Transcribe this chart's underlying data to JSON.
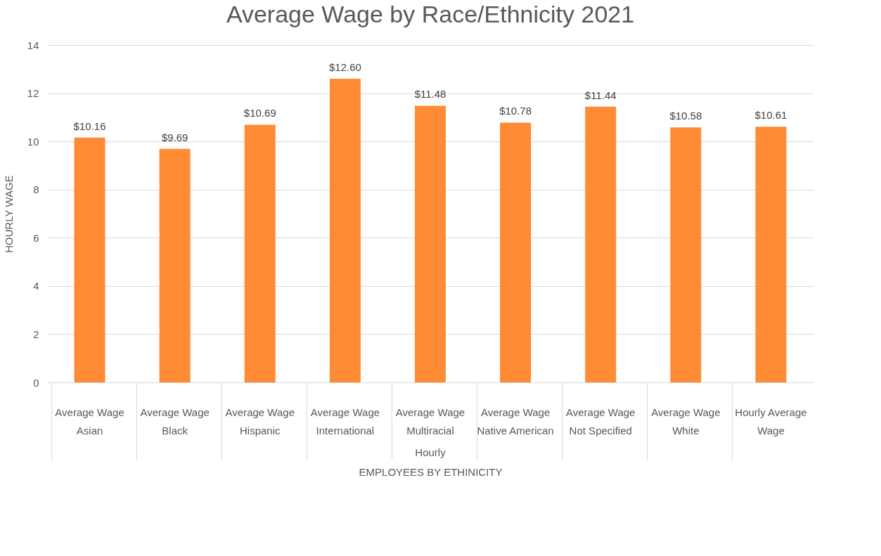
{
  "chart_data": {
    "type": "bar",
    "title": "Average Wage by Race/Ethnicity 2021",
    "categories": [
      "Average Wage\nAsian",
      "Average Wage\nBlack",
      "Average Wage\nHispanic",
      "Average Wage\nInternational",
      "Average Wage\nMultiracial",
      "Average Wage\nNative American",
      "Average Wage\nNot Specified",
      "Average Wage\nWhite",
      "Hourly Average\nWage"
    ],
    "values": [
      10.16,
      9.69,
      10.69,
      12.6,
      11.48,
      10.78,
      11.44,
      10.58,
      10.61
    ],
    "value_labels": [
      "$10.16",
      "$9.69",
      "$10.69",
      "$12.60",
      "$11.48",
      "$10.78",
      "$11.44",
      "$10.58",
      "$10.61"
    ],
    "color": "#ff8c35",
    "ylim": [
      0,
      14
    ],
    "yticks": [
      0,
      2,
      4,
      6,
      8,
      10,
      12,
      14
    ],
    "grid": "y",
    "ylabel": "HOURLY WAGE",
    "xlabel": "EMPLOYEES BY ETHINICITY",
    "annotations": [
      "Hourly"
    ]
  }
}
